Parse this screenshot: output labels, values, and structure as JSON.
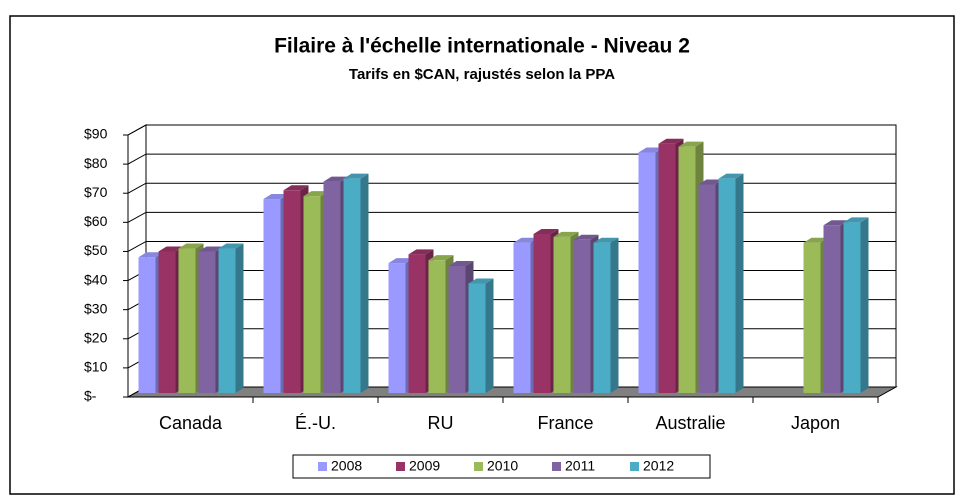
{
  "chart_data": {
    "type": "bar3d",
    "title": "Filaire à l'échelle internationale - Niveau 2",
    "subtitle": "Tarifs en $CAN, rajustés selon la PPA",
    "categories": [
      "Canada",
      "É.-U.",
      "RU",
      "France",
      "Australie",
      "Japon"
    ],
    "series": [
      {
        "name": "2008",
        "color": "#9999ff",
        "values": [
          48,
          68,
          46,
          53,
          84,
          null
        ]
      },
      {
        "name": "2009",
        "color": "#993366",
        "values": [
          50,
          71,
          49,
          56,
          87,
          null
        ]
      },
      {
        "name": "2010",
        "color": "#9bbb59",
        "values": [
          51,
          69,
          47,
          55,
          86,
          53
        ]
      },
      {
        "name": "2011",
        "color": "#8064a2",
        "values": [
          50,
          74,
          45,
          54,
          73,
          59
        ]
      },
      {
        "name": "2012",
        "color": "#4bacc6",
        "values": [
          51,
          75,
          39,
          53,
          75,
          60
        ]
      }
    ],
    "ylim": [
      0,
      90
    ],
    "yticks": [
      {
        "value": 0,
        "label": "$-"
      },
      {
        "value": 10,
        "label": "$10"
      },
      {
        "value": 20,
        "label": "$20"
      },
      {
        "value": 30,
        "label": "$30"
      },
      {
        "value": 40,
        "label": "$40"
      },
      {
        "value": 50,
        "label": "$50"
      },
      {
        "value": 60,
        "label": "$60"
      },
      {
        "value": 70,
        "label": "$70"
      },
      {
        "value": 80,
        "label": "$80"
      },
      {
        "value": 90,
        "label": "$90"
      }
    ],
    "grid": true,
    "legend": "bottom"
  }
}
